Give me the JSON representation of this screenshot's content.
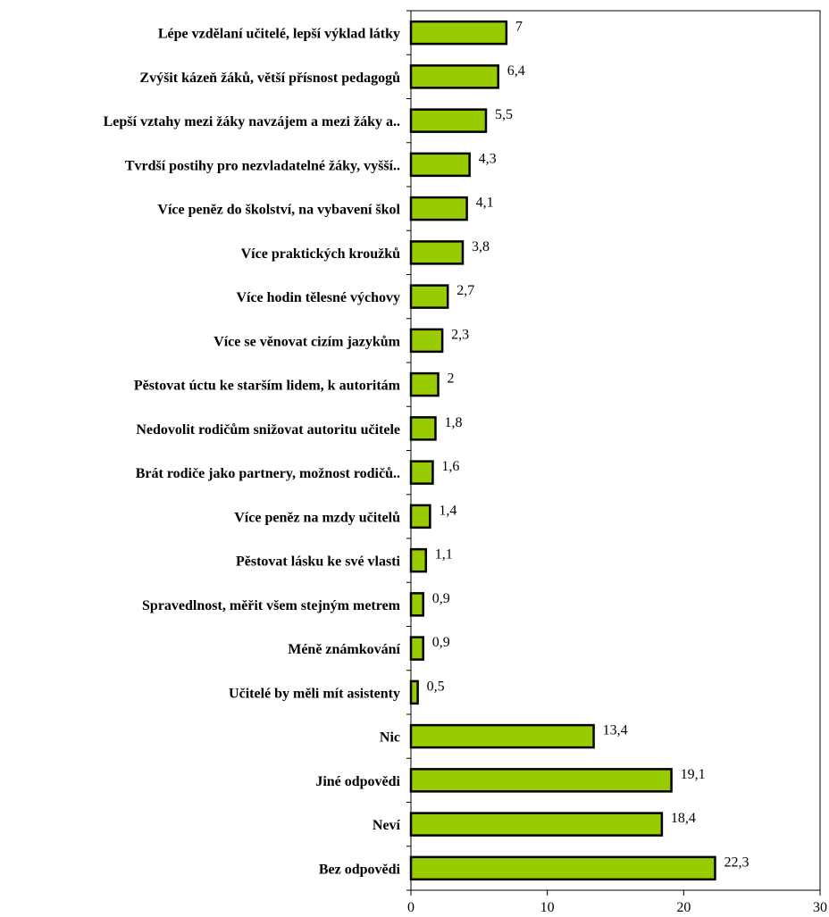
{
  "chart_data": {
    "type": "bar",
    "orientation": "horizontal",
    "categories": [
      "Lépe vzdělaní učitelé, lepší výklad látky",
      "Zvýšit kázeň žáků, větší přísnost pedagogů",
      "Lepší vztahy mezi žáky navzájem a mezi žáky a..",
      "Tvrdší postihy pro nezvladatelné žáky, vyšší..",
      "Více peněz do školství, na vybavení škol",
      "Více praktických kroužků",
      "Více hodin tělesné výchovy",
      "Více se věnovat cizím jazykům",
      "Pěstovat úctu ke starším lidem, k autoritám",
      "Nedovolit rodičům snižovat autoritu učitele",
      "Brát rodiče jako partnery, možnost rodičů..",
      "Více peněz na mzdy učitelů",
      "Pěstovat lásku ke své vlasti",
      "Spravedlnost, měřit všem stejným metrem",
      "Méně známkování",
      "Učitelé by měli mít asistenty",
      "Nic",
      "Jiné odpovědi",
      "Neví",
      "Bez odpovědi"
    ],
    "values": [
      7,
      6.4,
      5.5,
      4.3,
      4.1,
      3.8,
      2.7,
      2.3,
      2,
      1.8,
      1.6,
      1.4,
      1.1,
      0.9,
      0.9,
      0.5,
      13.4,
      19.1,
      18.4,
      22.3
    ],
    "value_labels": [
      "7",
      "6,4",
      "5,5",
      "4,3",
      "4,1",
      "3,8",
      "2,7",
      "2,3",
      "2",
      "1,8",
      "1,6",
      "1,4",
      "1,1",
      "0,9",
      "0,9",
      "0,5",
      "13,4",
      "19,1",
      "18,4",
      "22,3"
    ],
    "xlim": [
      0,
      30
    ],
    "xticks": [
      0,
      10,
      20,
      30
    ],
    "grid": false,
    "legend": "none",
    "bar_color": "#99cc00",
    "bar_edge_color": "#000000"
  }
}
